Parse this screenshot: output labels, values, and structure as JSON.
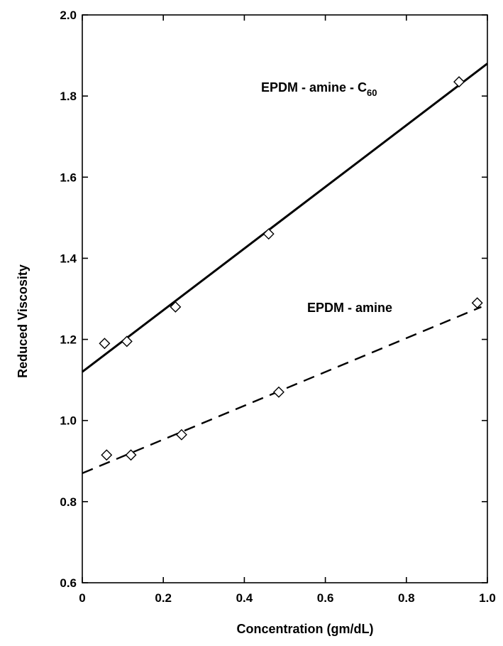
{
  "chart_data": {
    "type": "scatter",
    "xlabel": "Concentration (gm/dL)",
    "ylabel": "Reduced Viscosity",
    "xlim": [
      0,
      1.0
    ],
    "ylim": [
      0.6,
      2.0
    ],
    "x_ticks": [
      "0",
      "0.2",
      "0.4",
      "0.6",
      "0.8",
      "1.0"
    ],
    "y_ticks": [
      "0.6",
      "0.8",
      "1.0",
      "1.2",
      "1.4",
      "1.6",
      "1.8",
      "2.0"
    ],
    "grid": false,
    "series": [
      {
        "name": "EPDM - amine - C",
        "name_subscript": "60",
        "marker": "diamond",
        "line_style": "solid",
        "points": [
          {
            "x": 0.055,
            "y": 1.19
          },
          {
            "x": 0.11,
            "y": 1.195
          },
          {
            "x": 0.23,
            "y": 1.28
          },
          {
            "x": 0.46,
            "y": 1.46
          },
          {
            "x": 0.93,
            "y": 1.835
          }
        ],
        "fit_line": [
          {
            "x": 0,
            "y": 1.12
          },
          {
            "x": 1.0,
            "y": 1.88
          }
        ]
      },
      {
        "name": "EPDM - amine",
        "marker": "diamond",
        "line_style": "dashed",
        "points": [
          {
            "x": 0.06,
            "y": 0.915
          },
          {
            "x": 0.12,
            "y": 0.915
          },
          {
            "x": 0.245,
            "y": 0.965
          },
          {
            "x": 0.485,
            "y": 1.07
          },
          {
            "x": 0.975,
            "y": 1.29
          }
        ],
        "fit_line": [
          {
            "x": 0,
            "y": 0.87
          },
          {
            "x": 0.985,
            "y": 1.28
          }
        ]
      }
    ]
  }
}
